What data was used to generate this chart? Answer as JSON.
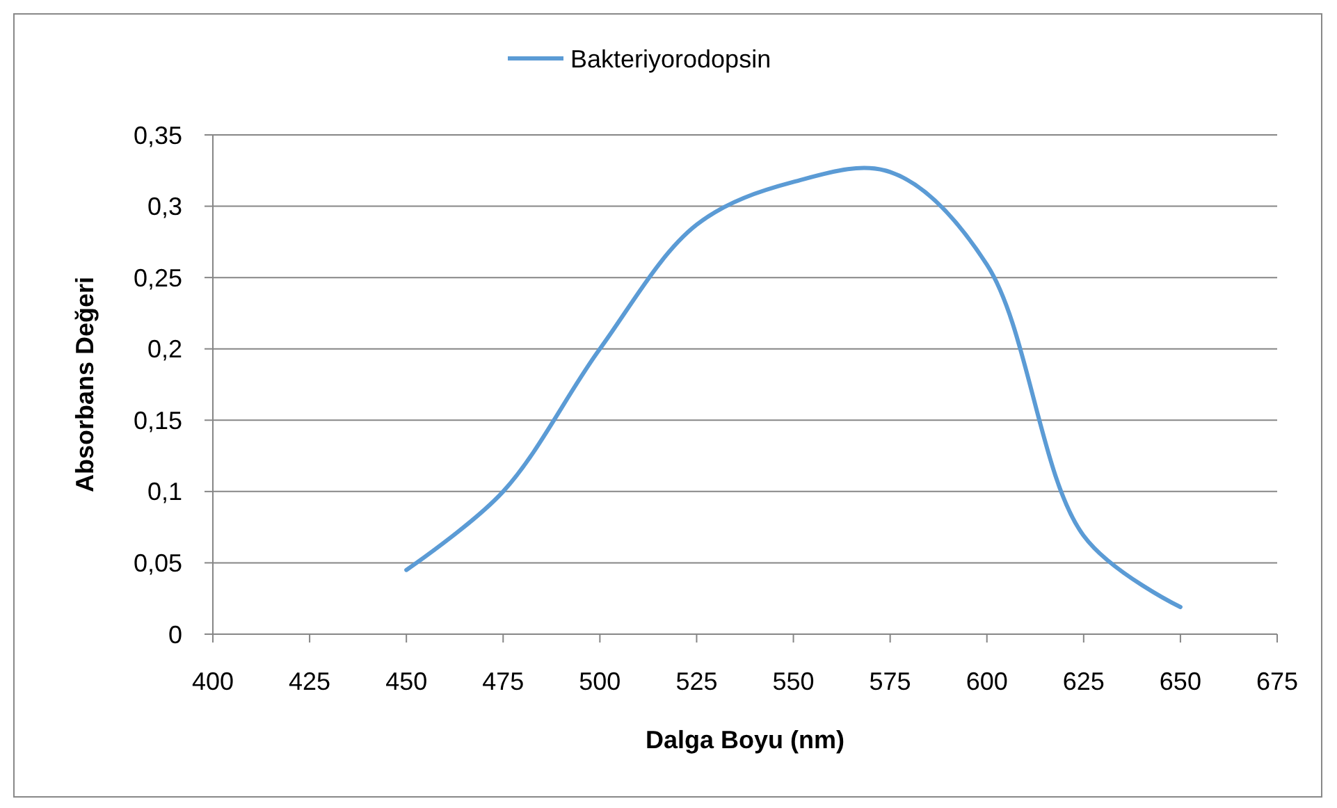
{
  "chart_data": {
    "type": "line",
    "xlabel": "Dalga Boyu (nm)",
    "ylabel": "Absorbans Değeri",
    "x": [
      450,
      475,
      500,
      525,
      550,
      575,
      600,
      625,
      650
    ],
    "series": [
      {
        "name": "Bakteriyorodopsin",
        "color": "#5b9bd5",
        "values": [
          0.045,
          0.1,
          0.2,
          0.287,
          0.317,
          0.324,
          0.259,
          0.069,
          0.019
        ]
      }
    ],
    "xlim": [
      400,
      675
    ],
    "xticks": [
      400,
      425,
      450,
      475,
      500,
      525,
      550,
      575,
      600,
      625,
      650,
      675
    ],
    "ylim": [
      0,
      0.35
    ],
    "yticks": [
      {
        "value": 0,
        "label": "0"
      },
      {
        "value": 0.05,
        "label": "0,05"
      },
      {
        "value": 0.1,
        "label": "0,1"
      },
      {
        "value": 0.15,
        "label": "0,15"
      },
      {
        "value": 0.2,
        "label": "0,2"
      },
      {
        "value": 0.25,
        "label": "0,25"
      },
      {
        "value": 0.3,
        "label": "0,3"
      },
      {
        "value": 0.35,
        "label": "0,35"
      }
    ],
    "grid": "y",
    "legend": "top",
    "marker": "none",
    "line_style": "solid"
  }
}
